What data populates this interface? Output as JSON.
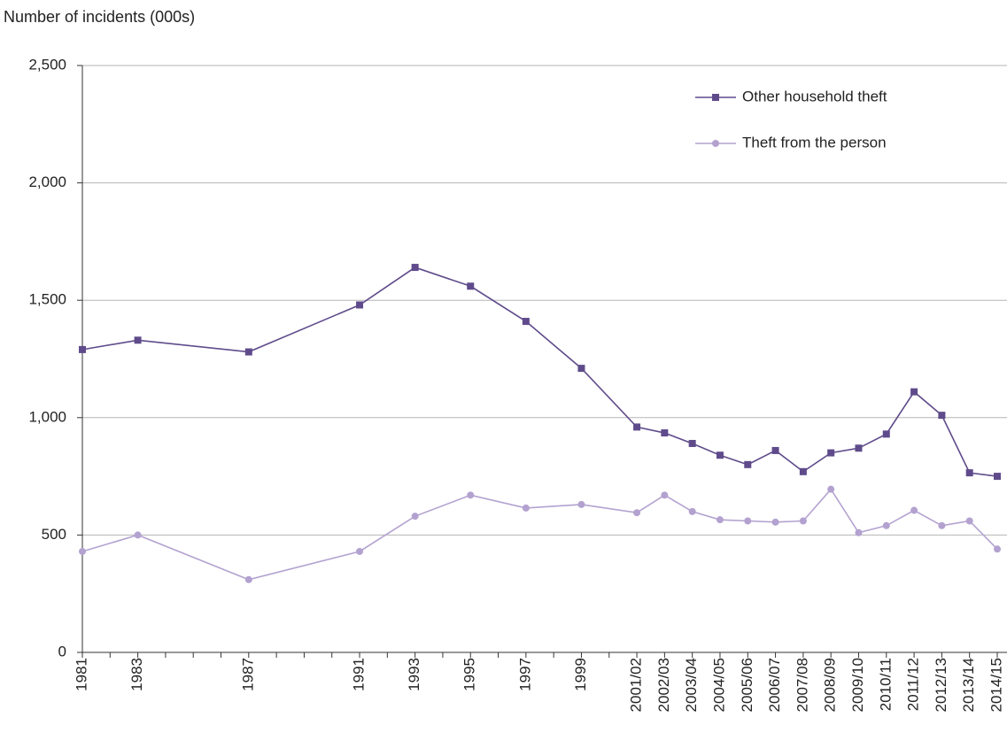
{
  "chart_data": {
    "type": "line",
    "y_label": "Number of incidents (000s)",
    "categories": [
      "1981",
      null,
      "1983",
      null,
      null,
      null,
      "1987",
      null,
      null,
      null,
      "1991",
      null,
      "1993",
      null,
      "1995",
      null,
      "1997",
      null,
      "1999",
      null,
      "2001/02",
      "2002/03",
      "2003/04",
      "2004/05",
      "2005/06",
      "2006/07",
      "2007/08",
      "2008/09",
      "2009/10",
      "2010/11",
      "2011/12",
      "2012/13",
      "2013/14",
      "2014/15"
    ],
    "series": [
      {
        "name": "Other household theft",
        "color": "#5f4b8b",
        "marker": "square",
        "values": [
          1290,
          null,
          1330,
          null,
          null,
          null,
          1280,
          null,
          null,
          null,
          1480,
          null,
          1640,
          null,
          1560,
          null,
          1410,
          null,
          1210,
          null,
          960,
          935,
          890,
          840,
          800,
          860,
          770,
          850,
          870,
          930,
          1110,
          1010,
          765,
          750
        ]
      },
      {
        "name": "Theft from the person",
        "color": "#b3a2d0",
        "marker": "circle",
        "values": [
          430,
          null,
          500,
          null,
          null,
          null,
          310,
          null,
          null,
          null,
          430,
          null,
          580,
          null,
          670,
          null,
          615,
          null,
          630,
          null,
          595,
          670,
          600,
          565,
          560,
          555,
          560,
          695,
          510,
          540,
          605,
          540,
          560,
          440
        ]
      }
    ],
    "ylim": [
      0,
      2500
    ],
    "yticks": [
      0,
      500,
      {
        "value": 1000,
        "label": "1,000"
      },
      {
        "value": 1500,
        "label": "1,500"
      },
      {
        "value": 2000,
        "label": "2,000"
      },
      {
        "value": 2500,
        "label": "2,500"
      }
    ],
    "grid": true,
    "legend": "top-right"
  }
}
